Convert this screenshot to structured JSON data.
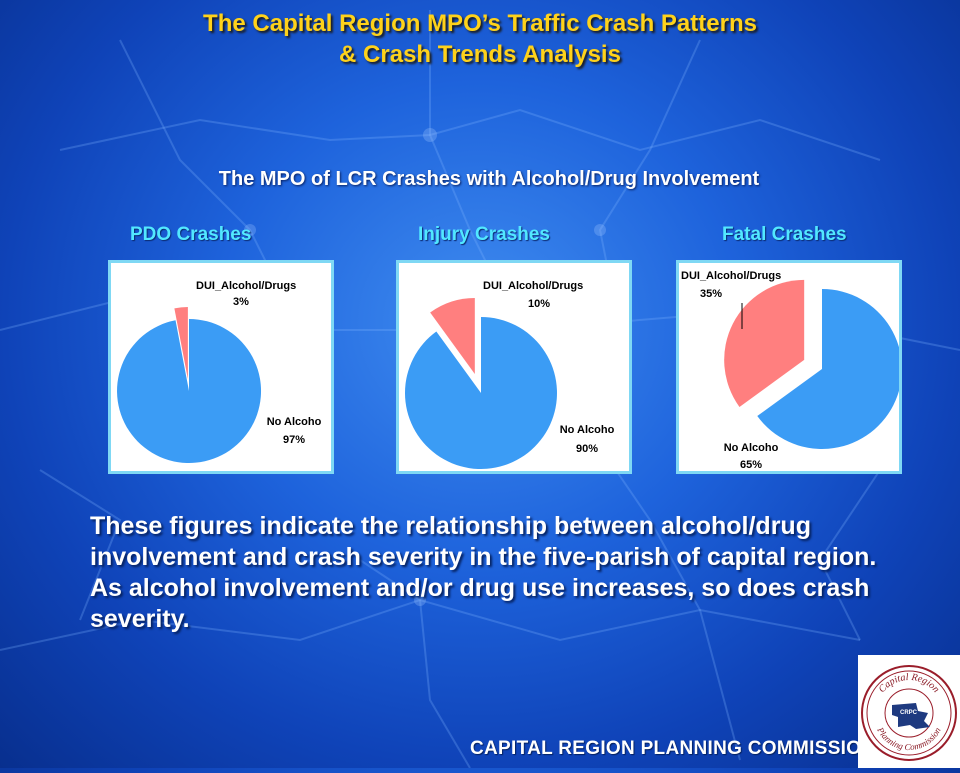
{
  "title": {
    "line1": "The Capital Region MPO’s Traffic Crash Patterns",
    "line2": "& Crash Trends Analysis"
  },
  "subtitle": "The MPO of LCR Crashes with Alcohol/Drug Involvement",
  "chart_data": [
    {
      "type": "pie",
      "title": "PDO Crashes",
      "slices": [
        {
          "label": "DUI_Alcohol/Drugs",
          "value": 3,
          "value_text": "3%",
          "color": "#ff7f7f",
          "exploded": true
        },
        {
          "label": "No Alcoho",
          "value": 97,
          "value_text": "97%",
          "color": "#3b9cf5",
          "exploded": false
        }
      ]
    },
    {
      "type": "pie",
      "title": "Injury Crashes",
      "slices": [
        {
          "label": "DUI_Alcohol/Drugs",
          "value": 10,
          "value_text": "10%",
          "color": "#ff7f7f",
          "exploded": true
        },
        {
          "label": "No Alcoho",
          "value": 90,
          "value_text": "90%",
          "color": "#3b9cf5",
          "exploded": false
        }
      ]
    },
    {
      "type": "pie",
      "title": "Fatal Crashes",
      "slices": [
        {
          "label": "DUI_Alcohol/Drugs",
          "value": 35,
          "value_text": "35%",
          "color": "#ff7f7f",
          "exploded": true
        },
        {
          "label": "No Alcoho",
          "value": 65,
          "value_text": "65%",
          "color": "#3b9cf5",
          "exploded": false
        }
      ]
    }
  ],
  "body_text": "These figures indicate the relationship between alcohol/drug involvement and crash severity in the five-parish of capital region.  As alcohol involvement and/or drug use increases, so does crash severity.",
  "footer": "CAPITAL REGION PLANNING COMMISSION",
  "logo": {
    "text_top": "Capital Region",
    "text_bottom": "Planning Commission",
    "monogram": "CRPC"
  },
  "colors": {
    "title": "#ffd21a",
    "chart_title": "#52e8ff",
    "dui_slice": "#ff7f7f",
    "no_alcohol_slice": "#3b9cf5"
  }
}
